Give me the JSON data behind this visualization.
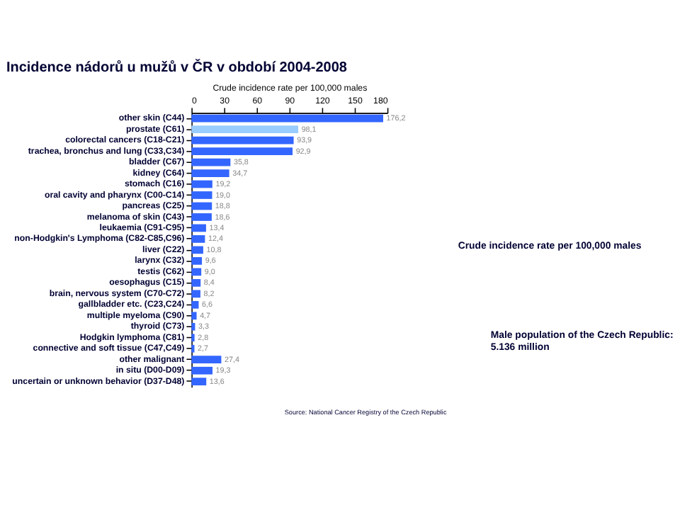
{
  "chart_data": {
    "type": "bar",
    "orientation": "horizontal",
    "title": "Incidence nádorů u mužů v ČR v období 2004-2008",
    "xlabel": "Crude incidence  rate per 100,000  males",
    "categories": [
      "other skin  (C44)",
      "prostate  (C61)",
      "colorectal cancers  (C18-C21)",
      "trachea,  bronchus and lung (C33,C34)",
      "bladder  (C67)",
      "kidney  (C64)",
      "stomach  (C16)",
      "oral cavity  and pharynx  (C00-C14)",
      "pancreas  (C25)",
      "melanoma  of skin  (C43)",
      "leukaemia  (C91-C95)",
      "non-Hodgkin's Lymphoma (C82-C85,C96)",
      "liver  (C22)",
      "larynx  (C32)",
      "testis  (C62)",
      "oesophagus  (C15)",
      "brain,  nervous system  (C70-C72)",
      "gallbladder  etc.  (C23,C24)",
      "multiple  myeloma  (C90)",
      "thyroid  (C73)",
      "Hodgkin lymphoma  (C81)",
      "connective  and  soft tissue (C47,C49)",
      "other malignant",
      "in situ  (D00-D09)",
      "uncertain  or unknown behavior  (D37-D48)"
    ],
    "values": [
      176.2,
      98.1,
      93.9,
      92.9,
      35.8,
      34.7,
      19.2,
      19.0,
      18.8,
      18.6,
      13.4,
      12.4,
      10.8,
      9.6,
      9.0,
      8.4,
      8.2,
      6.6,
      4.7,
      3.3,
      2.8,
      2.7,
      27.4,
      19.3,
      13.6
    ],
    "value_labels": [
      "176,2",
      "98,1",
      "93,9",
      "92,9",
      "35,8",
      "34,7",
      "19,2",
      "19,0",
      "18,8",
      "18,6",
      "13,4",
      "12,4",
      "10,8",
      "9,6",
      "9,0",
      "8,4",
      "8,2",
      "6,6",
      "4,7",
      "3,3",
      "2,8",
      "2,7",
      "27,4",
      "19,3",
      "13,6"
    ],
    "colors": [
      "#3366ff",
      "#99ccff",
      "#3366ff",
      "#3366ff",
      "#3366ff",
      "#3366ff",
      "#3366ff",
      "#3366ff",
      "#3366ff",
      "#3366ff",
      "#3366ff",
      "#3366ff",
      "#3366ff",
      "#3366ff",
      "#3366ff",
      "#3366ff",
      "#3366ff",
      "#3366ff",
      "#3366ff",
      "#3366ff",
      "#3366ff",
      "#3366ff",
      "#3366ff",
      "#3366ff",
      "#3366ff"
    ],
    "xlim": [
      0,
      180
    ],
    "xticks": [
      0,
      30,
      60,
      90,
      120,
      150,
      180
    ],
    "grid": false,
    "annotations": [
      "Crude incidence rate per 100,000 males",
      "Male population of the Czech Republic: 5.136 million",
      "Source: National Cancer Registry of the Czech Republic"
    ]
  }
}
